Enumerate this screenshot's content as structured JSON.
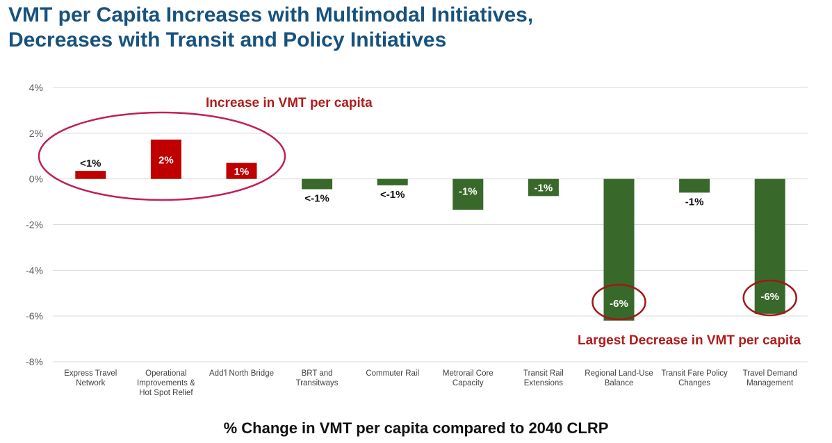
{
  "title": {
    "line1": "VMT per Capita Increases with Multimodal Initiatives,",
    "line2": "Decreases with Transit and Policy Initiatives"
  },
  "colors": {
    "title": "#17527e",
    "increase": "#c00000",
    "decrease": "#38692a",
    "annotation": "#b01c1c",
    "ellipse_increase": "#c0205a",
    "ellipse_decrease": "#a01818"
  },
  "annotations": {
    "increase": "Increase in VMT per capita",
    "decrease": "Largest Decrease in VMT per capita"
  },
  "chart_data": {
    "type": "bar",
    "xlabel": "% Change in VMT per capita compared to 2040 CLRP",
    "ylabel": "",
    "ylim": [
      -8,
      4
    ],
    "yticks": [
      "4%",
      "2%",
      "0%",
      "-2%",
      "-4%",
      "-6%",
      "-8%"
    ],
    "grid": true,
    "categories": [
      [
        "Express Travel",
        "Network"
      ],
      [
        "Operational",
        "Improvements &",
        "Hot Spot Relief"
      ],
      [
        "Add'l North Bridge"
      ],
      [
        "BRT and",
        "Transitways"
      ],
      [
        "Commuter Rail"
      ],
      [
        "Metrorail Core",
        "Capacity"
      ],
      [
        "Transit Rail",
        "Extensions"
      ],
      [
        "Regional Land-Use",
        "Balance"
      ],
      [
        "Transit Fare Policy",
        "Changes"
      ],
      [
        "Travel Demand",
        "Management"
      ]
    ],
    "values": [
      0.35,
      1.72,
      0.7,
      -0.45,
      -0.28,
      -1.35,
      -0.75,
      -6.2,
      -0.6,
      -5.9
    ],
    "data_labels": [
      "<1%",
      "2%",
      "1%",
      "<-1%",
      "<-1%",
      "-1%",
      "-1%",
      "-6%",
      "-1%",
      "-6%"
    ]
  }
}
